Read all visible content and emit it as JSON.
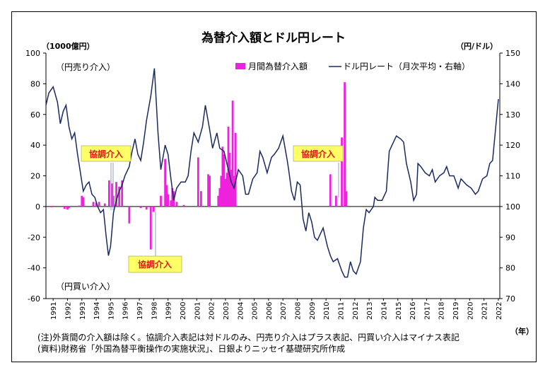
{
  "chart_data": {
    "type": "bar+line",
    "title": "為替介入額とドル円レート",
    "left_axis_unit": "（1000億円）",
    "right_axis_unit": "（円/ドル）",
    "x_axis_unit": "（年）",
    "left_axis": {
      "ylim": [
        -60,
        100
      ],
      "ticks": [
        "100",
        "80",
        "60",
        "40",
        "20",
        "0",
        "-20",
        "-40",
        "-60"
      ]
    },
    "right_axis": {
      "ylim": [
        70,
        150
      ],
      "ticks": [
        "150",
        "140",
        "130",
        "120",
        "110",
        "100",
        "90",
        "80",
        "70"
      ]
    },
    "x_axis": {
      "xlim": [
        1991.0,
        2022.6
      ],
      "years": [
        "1991",
        "1992",
        "1993",
        "1994",
        "1995",
        "1996",
        "1997",
        "1998",
        "1999",
        "2000",
        "2001",
        "2002",
        "2003",
        "2004",
        "2005",
        "2006",
        "2007",
        "2008",
        "2009",
        "2010",
        "2011",
        "2012",
        "2013",
        "2014",
        "2015",
        "2016",
        "2017",
        "2018",
        "2019",
        "2020",
        "2021",
        "2022"
      ]
    },
    "region_labels": {
      "sell": "（円売り介入）",
      "buy": "（円買い介入）"
    },
    "legend": {
      "bar": "月間為替介入額",
      "line": "ドル円レート（月次平均・右軸）"
    },
    "annotations": [
      "協調介入",
      "協調介入",
      "協調介入"
    ],
    "series": [
      {
        "name": "月間為替介入額",
        "type": "bar",
        "axis": "left",
        "color": "#ee22dd",
        "points": [
          [
            1991.4,
            -0.5
          ],
          [
            1992.3,
            -1.5
          ],
          [
            1992.5,
            -2
          ],
          [
            1992.6,
            -1
          ],
          [
            1993.3,
            0.6
          ],
          [
            1993.5,
            7
          ],
          [
            1993.6,
            6
          ],
          [
            1994.3,
            3
          ],
          [
            1994.5,
            2.5
          ],
          [
            1994.7,
            3
          ],
          [
            1995.1,
            2
          ],
          [
            1995.4,
            17
          ],
          [
            1995.6,
            15
          ],
          [
            1995.7,
            7
          ],
          [
            1995.9,
            16
          ],
          [
            1996.1,
            13
          ],
          [
            1996.3,
            17
          ],
          [
            1996.8,
            -11
          ],
          [
            1997.6,
            -1
          ],
          [
            1998.0,
            -2
          ],
          [
            1998.3,
            -28
          ],
          [
            1998.5,
            -3.5
          ],
          [
            1999.0,
            7
          ],
          [
            1999.3,
            31
          ],
          [
            1999.4,
            14
          ],
          [
            1999.5,
            8
          ],
          [
            1999.7,
            4
          ],
          [
            1999.8,
            12
          ],
          [
            1999.9,
            10
          ],
          [
            2000.1,
            3
          ],
          [
            2000.6,
            1
          ],
          [
            2001.6,
            32
          ],
          [
            2001.8,
            10
          ],
          [
            2002.3,
            21
          ],
          [
            2002.4,
            20
          ],
          [
            2003.0,
            7
          ],
          [
            2003.1,
            12
          ],
          [
            2003.2,
            20
          ],
          [
            2003.3,
            39
          ],
          [
            2003.4,
            34
          ],
          [
            2003.5,
            18
          ],
          [
            2003.6,
            22
          ],
          [
            2003.7,
            52
          ],
          [
            2003.8,
            35
          ],
          [
            2003.9,
            24
          ],
          [
            2004.0,
            69
          ],
          [
            2004.1,
            20
          ],
          [
            2004.2,
            48
          ],
          [
            2010.8,
            21
          ],
          [
            2011.2,
            7
          ],
          [
            2011.6,
            45
          ],
          [
            2011.8,
            81
          ],
          [
            2011.9,
            10
          ]
        ]
      },
      {
        "name": "ドル円レート（月次平均・右軸）",
        "type": "line",
        "axis": "right",
        "color": "#1a2a5e",
        "points": [
          [
            1991.0,
            133
          ],
          [
            1991.2,
            137
          ],
          [
            1991.5,
            139
          ],
          [
            1991.8,
            134
          ],
          [
            1992.0,
            127
          ],
          [
            1992.2,
            131
          ],
          [
            1992.4,
            133
          ],
          [
            1992.6,
            126
          ],
          [
            1992.8,
            122
          ],
          [
            1993.0,
            124
          ],
          [
            1993.2,
            117
          ],
          [
            1993.4,
            111
          ],
          [
            1993.6,
            105
          ],
          [
            1993.8,
            107
          ],
          [
            1994.0,
            108
          ],
          [
            1994.2,
            104
          ],
          [
            1994.4,
            103
          ],
          [
            1994.6,
            100
          ],
          [
            1994.8,
            98
          ],
          [
            1995.0,
            99
          ],
          [
            1995.2,
            90
          ],
          [
            1995.35,
            84
          ],
          [
            1995.5,
            87
          ],
          [
            1995.7,
            98
          ],
          [
            1995.9,
            102
          ],
          [
            1996.1,
            105
          ],
          [
            1996.3,
            107
          ],
          [
            1996.5,
            110
          ],
          [
            1996.8,
            113
          ],
          [
            1997.0,
            118
          ],
          [
            1997.2,
            122
          ],
          [
            1997.4,
            117
          ],
          [
            1997.6,
            115
          ],
          [
            1997.8,
            121
          ],
          [
            1998.0,
            128
          ],
          [
            1998.3,
            136
          ],
          [
            1998.55,
            145
          ],
          [
            1998.8,
            124
          ],
          [
            1999.0,
            112
          ],
          [
            1999.3,
            120
          ],
          [
            1999.5,
            117
          ],
          [
            1999.7,
            109
          ],
          [
            1999.9,
            102
          ],
          [
            2000.1,
            106
          ],
          [
            2000.4,
            108
          ],
          [
            2000.7,
            108
          ],
          [
            2000.9,
            110
          ],
          [
            2001.1,
            118
          ],
          [
            2001.3,
            124
          ],
          [
            2001.6,
            121
          ],
          [
            2001.9,
            126
          ],
          [
            2002.1,
            133
          ],
          [
            2002.4,
            125
          ],
          [
            2002.6,
            119
          ],
          [
            2002.9,
            124
          ],
          [
            2003.1,
            119
          ],
          [
            2003.4,
            118
          ],
          [
            2003.7,
            112
          ],
          [
            2003.9,
            108
          ],
          [
            2004.1,
            106
          ],
          [
            2004.4,
            112
          ],
          [
            2004.7,
            110
          ],
          [
            2004.9,
            104
          ],
          [
            2005.1,
            104
          ],
          [
            2005.4,
            109
          ],
          [
            2005.7,
            111
          ],
          [
            2005.9,
            118
          ],
          [
            2006.1,
            116
          ],
          [
            2006.4,
            111
          ],
          [
            2006.7,
            116
          ],
          [
            2006.9,
            117
          ],
          [
            2007.2,
            119
          ],
          [
            2007.5,
            123
          ],
          [
            2007.8,
            115
          ],
          [
            2007.9,
            112
          ],
          [
            2008.1,
            105
          ],
          [
            2008.3,
            102
          ],
          [
            2008.5,
            108
          ],
          [
            2008.7,
            107
          ],
          [
            2008.9,
            96
          ],
          [
            2009.1,
            92
          ],
          [
            2009.3,
            98
          ],
          [
            2009.5,
            95
          ],
          [
            2009.7,
            90
          ],
          [
            2009.9,
            89
          ],
          [
            2010.1,
            91
          ],
          [
            2010.3,
            93
          ],
          [
            2010.6,
            87
          ],
          [
            2010.8,
            84
          ],
          [
            2011.0,
            82
          ],
          [
            2011.3,
            83
          ],
          [
            2011.6,
            79
          ],
          [
            2011.8,
            77
          ],
          [
            2012.0,
            77
          ],
          [
            2012.2,
            82
          ],
          [
            2012.4,
            79
          ],
          [
            2012.6,
            78
          ],
          [
            2012.9,
            82
          ],
          [
            2013.1,
            93
          ],
          [
            2013.3,
            99
          ],
          [
            2013.5,
            98
          ],
          [
            2013.8,
            100
          ],
          [
            2013.9,
            103
          ],
          [
            2014.1,
            102
          ],
          [
            2014.4,
            102
          ],
          [
            2014.7,
            105
          ],
          [
            2014.9,
            118
          ],
          [
            2015.1,
            120
          ],
          [
            2015.4,
            123
          ],
          [
            2015.7,
            122
          ],
          [
            2015.9,
            121
          ],
          [
            2016.1,
            114
          ],
          [
            2016.4,
            108
          ],
          [
            2016.6,
            102
          ],
          [
            2016.8,
            104
          ],
          [
            2016.9,
            114
          ],
          [
            2017.1,
            113
          ],
          [
            2017.4,
            111
          ],
          [
            2017.7,
            110
          ],
          [
            2017.9,
            112
          ],
          [
            2018.1,
            108
          ],
          [
            2018.4,
            110
          ],
          [
            2018.7,
            111
          ],
          [
            2018.9,
            113
          ],
          [
            2019.1,
            110
          ],
          [
            2019.4,
            110
          ],
          [
            2019.7,
            106
          ],
          [
            2019.9,
            109
          ],
          [
            2020.1,
            108
          ],
          [
            2020.3,
            107
          ],
          [
            2020.6,
            106
          ],
          [
            2020.9,
            104
          ],
          [
            2021.1,
            105
          ],
          [
            2021.4,
            109
          ],
          [
            2021.7,
            110
          ],
          [
            2021.9,
            114
          ],
          [
            2022.1,
            115
          ],
          [
            2022.4,
            130
          ],
          [
            2022.5,
            135
          ]
        ]
      }
    ]
  },
  "notes": [
    "(注)外貨間の介入額は除く。協調介入表記は対ドルのみ、円売り介入はプラス表記、円買い介入はマイナス表記",
    "(資料)財務省「外国為替平衡操作の実施状況」、日銀よりニッセイ基礎研究所作成"
  ]
}
